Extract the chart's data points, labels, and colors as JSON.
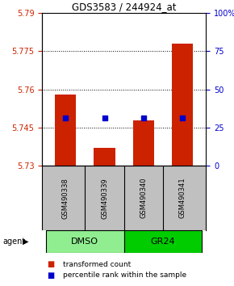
{
  "title": "GDS3583 / 244924_at",
  "samples": [
    "GSM490338",
    "GSM490339",
    "GSM490340",
    "GSM490341"
  ],
  "bar_bottoms": [
    5.73,
    5.73,
    5.73,
    5.73
  ],
  "bar_tops": [
    5.758,
    5.737,
    5.748,
    5.778
  ],
  "blue_values": [
    5.7488,
    5.7488,
    5.7488,
    5.7488
  ],
  "ylim": [
    5.73,
    5.79
  ],
  "yticks_left": [
    5.73,
    5.745,
    5.76,
    5.775,
    5.79
  ],
  "ytick_labels_left": [
    "5.73",
    "5.745",
    "5.76",
    "5.775",
    "5.79"
  ],
  "yticks_right": [
    0,
    25,
    50,
    75,
    100
  ],
  "ytick_labels_right": [
    "0",
    "25",
    "50",
    "75",
    "100%"
  ],
  "right_ylim": [
    0,
    100
  ],
  "groups": [
    {
      "label": "DMSO",
      "indices": [
        0,
        1
      ],
      "color": "#90EE90"
    },
    {
      "label": "GR24",
      "indices": [
        2,
        3
      ],
      "color": "#00CC00"
    }
  ],
  "bar_color": "#CC2200",
  "blue_color": "#0000CC",
  "background_sample": "#C0C0C0",
  "left_tick_color": "#CC2200",
  "right_tick_color": "#0000CC",
  "bar_width": 0.55,
  "legend": [
    {
      "color": "#CC2200",
      "label": "transformed count"
    },
    {
      "color": "#0000CC",
      "label": "percentile rank within the sample"
    }
  ]
}
